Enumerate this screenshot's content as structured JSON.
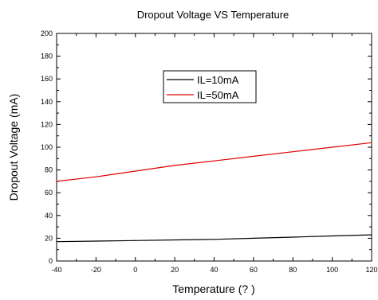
{
  "chart_data": {
    "type": "line",
    "title": "Dropout Voltage VS Temperature",
    "xlabel": "Temperature (? )",
    "ylabel": "Dropout Voltage (mA)",
    "xlim": [
      -40,
      120
    ],
    "ylim": [
      0,
      200
    ],
    "x_ticks": [
      -40,
      -20,
      0,
      20,
      40,
      60,
      80,
      100,
      120
    ],
    "y_ticks": [
      0,
      20,
      40,
      60,
      80,
      100,
      120,
      140,
      160,
      180,
      200
    ],
    "grid": false,
    "legend_position": "upper-center",
    "series": [
      {
        "name": "IL=10mA",
        "color": "#000000",
        "x": [
          -40,
          -20,
          0,
          20,
          40,
          60,
          80,
          100,
          120
        ],
        "y": [
          17,
          17.5,
          18,
          18.5,
          19,
          20,
          21,
          22,
          23
        ]
      },
      {
        "name": "IL=50mA",
        "color": "#e00000",
        "x": [
          -40,
          -20,
          0,
          20,
          40,
          60,
          80,
          100,
          120
        ],
        "y": [
          70,
          74,
          79,
          84,
          88,
          92,
          96,
          100,
          104
        ]
      }
    ]
  }
}
